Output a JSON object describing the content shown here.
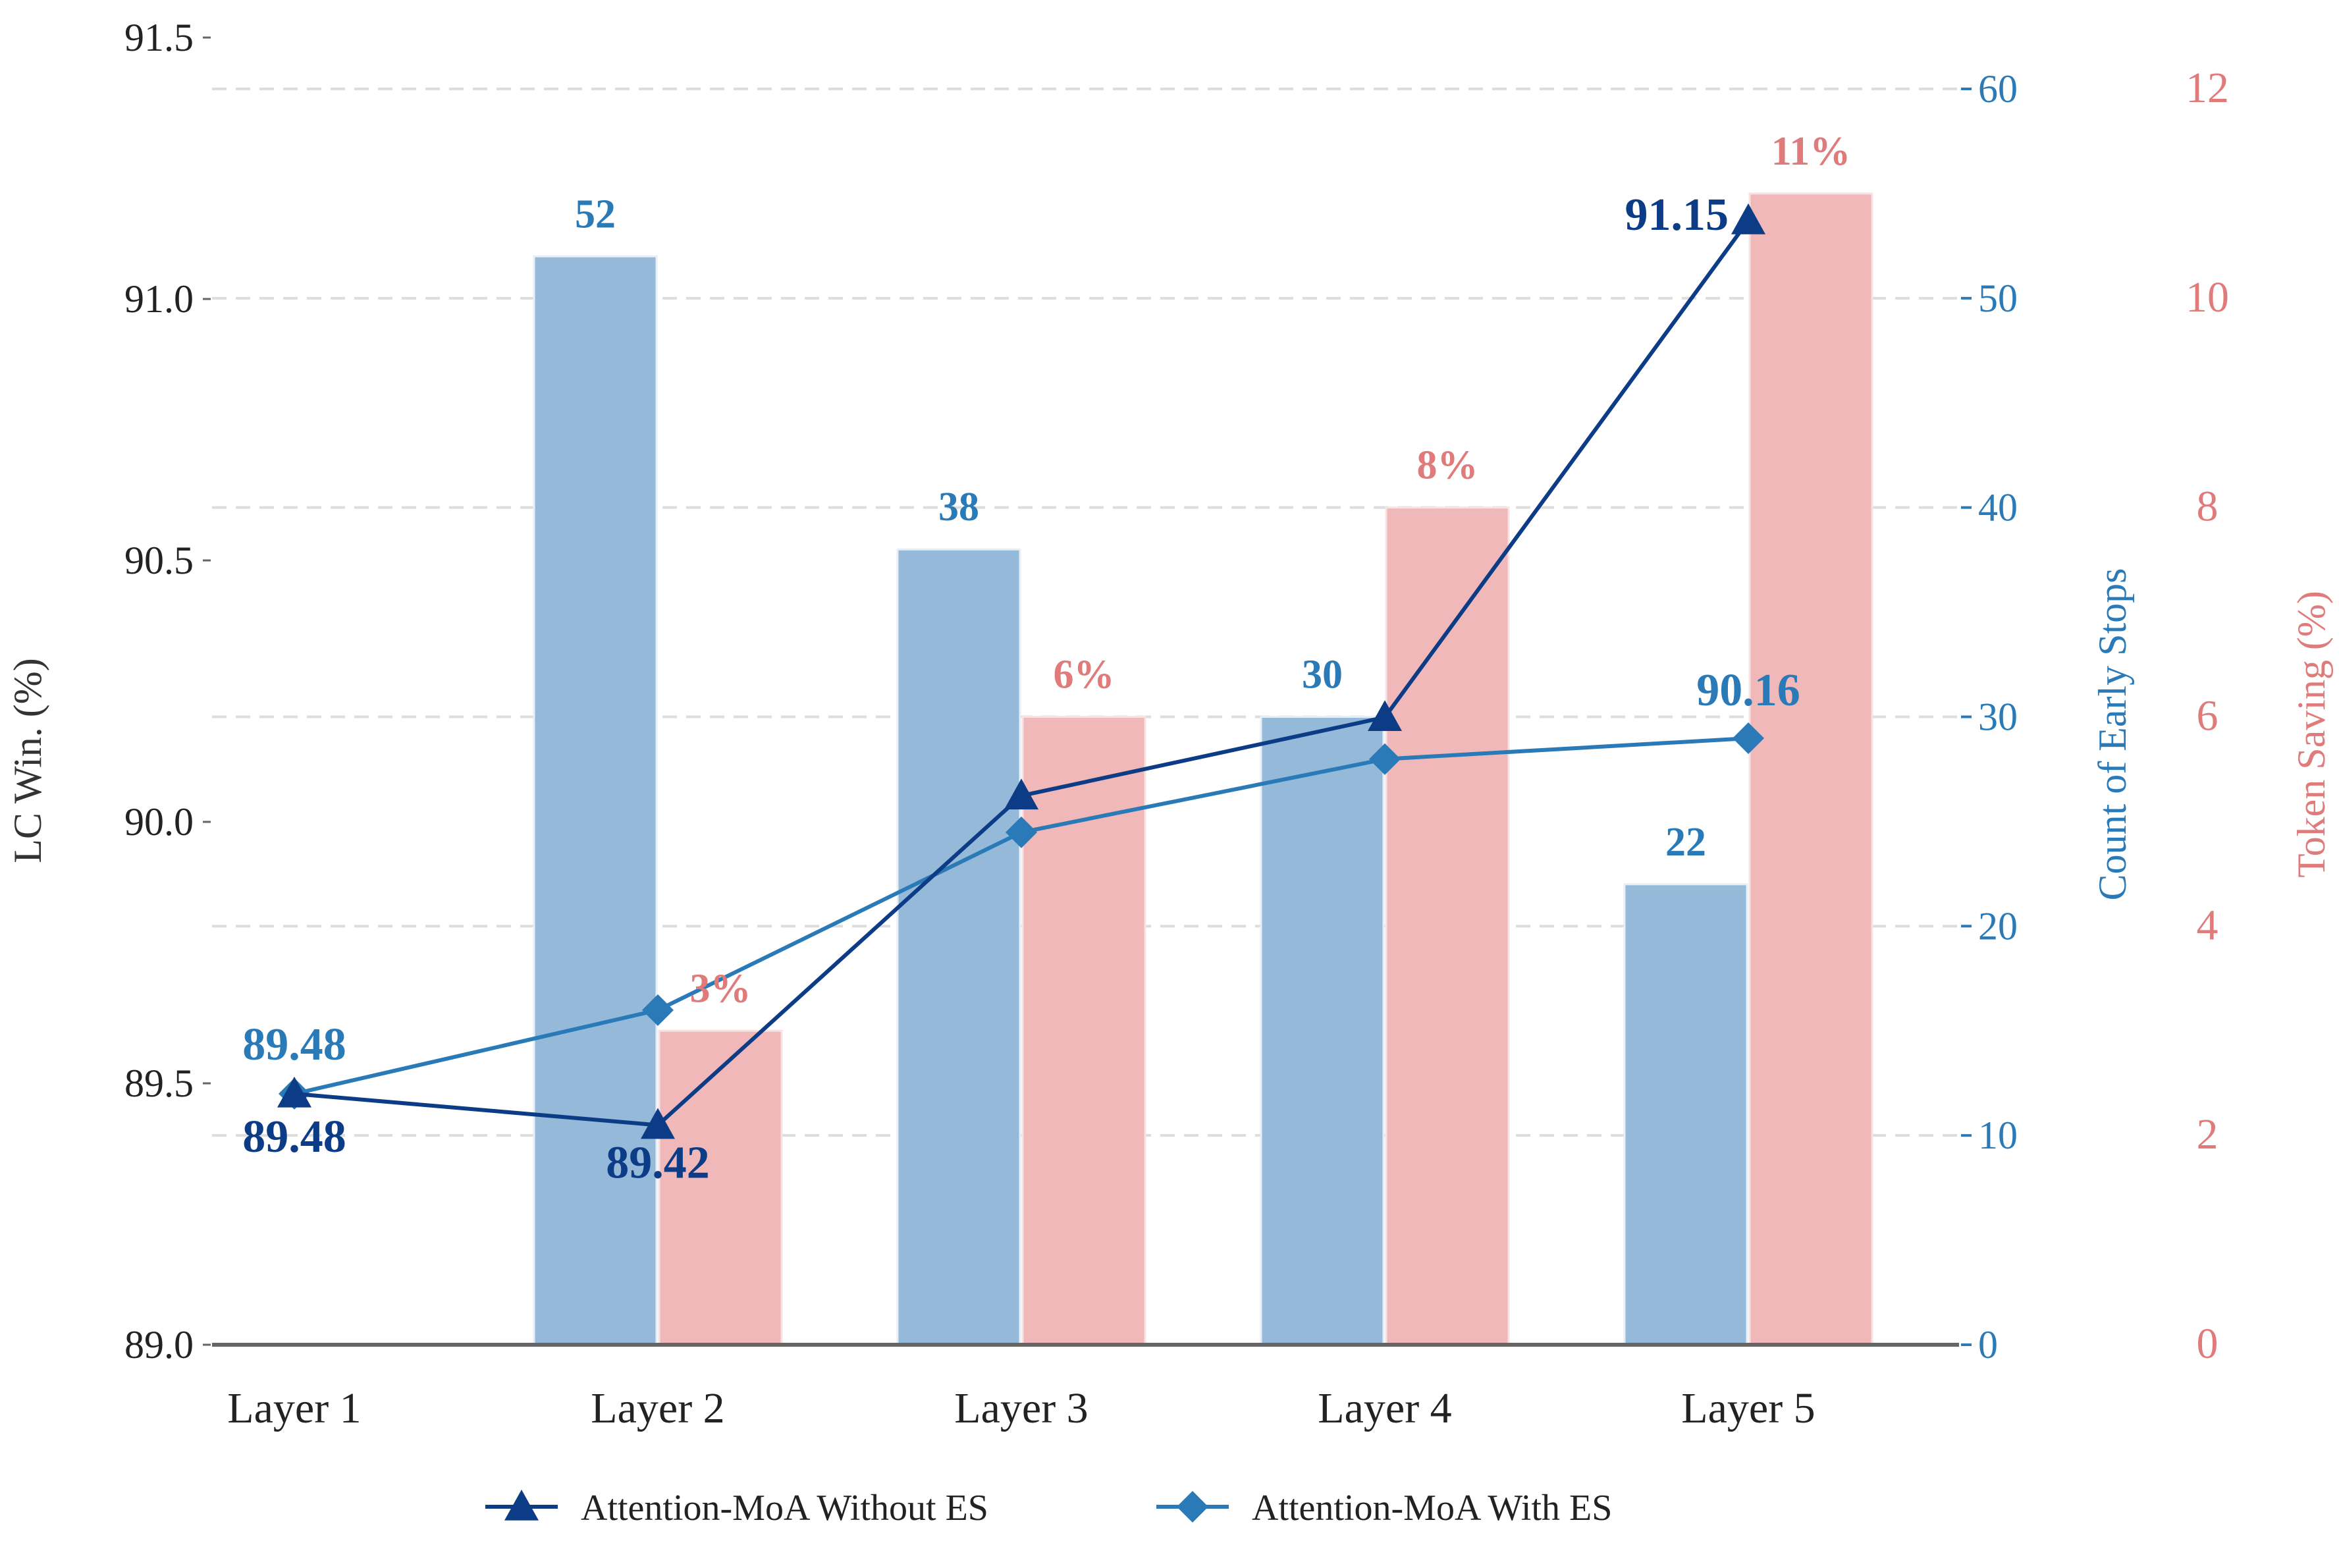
{
  "chart_data": {
    "type": "bar",
    "categories": [
      "Layer 1",
      "Layer 2",
      "Layer 3",
      "Layer 4",
      "Layer 5"
    ],
    "left_axis": {
      "label": "LC Win. (%)",
      "ylim": [
        89.0,
        91.5
      ],
      "ticks": [
        "89.0",
        "89.5",
        "90.0",
        "90.5",
        "91.0",
        "91.5"
      ]
    },
    "right_axis_1": {
      "label": "Count of Early Stops",
      "ylim": [
        0,
        60
      ],
      "ticks": [
        "0",
        "10",
        "20",
        "30",
        "40",
        "50",
        "60"
      ],
      "color": "#2a7ab8"
    },
    "right_axis_2": {
      "label": "Token Saving (%)",
      "ylim": [
        0,
        12
      ],
      "ticks": [
        "0",
        "2",
        "4",
        "6",
        "8",
        "10",
        "12"
      ],
      "color": "#e07b7b"
    },
    "bars_count": {
      "values": [
        null,
        52,
        38,
        30,
        22
      ],
      "labels": [
        "",
        "52",
        "38",
        "30",
        "22"
      ],
      "color": "#94b9d9"
    },
    "bars_saving": {
      "values": [
        null,
        3,
        6,
        8,
        11
      ],
      "labels": [
        "",
        "3%",
        "6%",
        "8%",
        "11%"
      ],
      "color": "#f0b8b8"
    },
    "series": [
      {
        "name": "Attention-MoA Without ES",
        "values": [
          89.48,
          89.42,
          90.05,
          90.2,
          91.15
        ],
        "point_labels": [
          "89.48",
          "89.42",
          "",
          "",
          "91.15"
        ],
        "color": "#0d3c87",
        "marker": "triangle"
      },
      {
        "name": "Attention-MoA With ES",
        "values": [
          89.48,
          89.64,
          89.98,
          90.12,
          90.16
        ],
        "point_labels": [
          "89.48",
          "",
          "",
          "",
          "90.16"
        ],
        "color": "#2a7ab8",
        "marker": "diamond"
      }
    ],
    "grid": "horizontal-dashed",
    "legend": "bottom-center"
  }
}
